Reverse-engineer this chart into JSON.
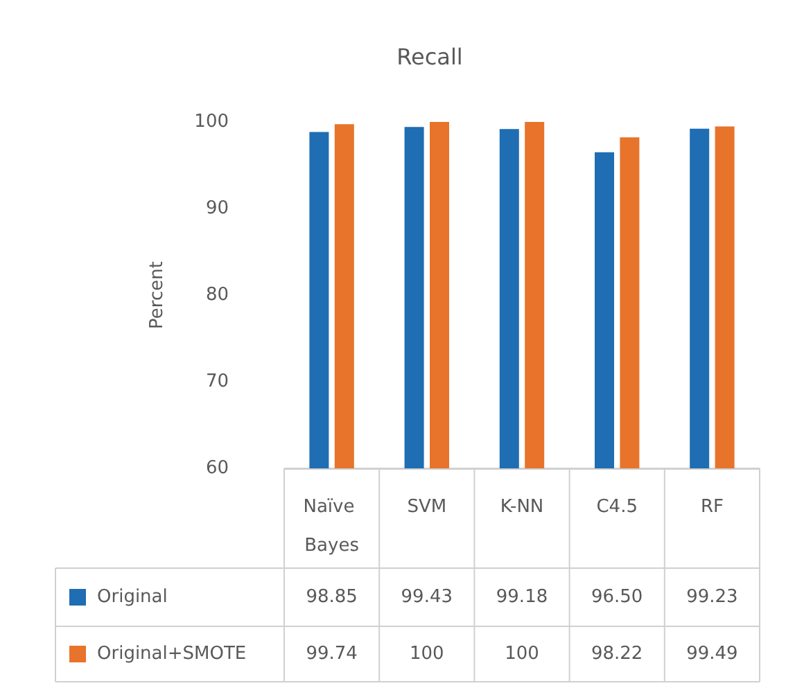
{
  "chart_data": {
    "type": "bar",
    "title": "Recall",
    "ylabel": "Percent",
    "categories": [
      "Naïve Bayes",
      "SVM",
      "K-NN",
      "C4.5",
      "RF"
    ],
    "series": [
      {
        "name": "Original",
        "color": "#1f6db3",
        "values": [
          98.85,
          99.43,
          99.18,
          96.5,
          99.23
        ],
        "value_labels": [
          "98.85",
          "99.43",
          "99.18",
          "96.50",
          "99.23"
        ]
      },
      {
        "name": "Original+SMOTE",
        "color": "#e8732a",
        "values": [
          99.74,
          100,
          100,
          98.22,
          99.49
        ],
        "value_labels": [
          "99.74",
          "100",
          "100",
          "98.22",
          "99.49"
        ]
      }
    ],
    "ylim": [
      60,
      100
    ],
    "yticks": [
      60,
      70,
      80,
      90,
      100
    ],
    "grid": false,
    "legend": "bottom"
  }
}
